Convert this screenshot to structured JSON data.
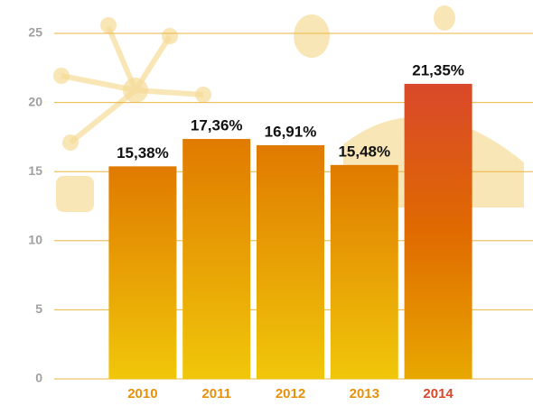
{
  "chart_data": {
    "type": "bar",
    "categories": [
      "2010",
      "2011",
      "2012",
      "2013",
      "2014"
    ],
    "values": [
      15.38,
      17.36,
      16.91,
      15.48,
      21.35
    ],
    "value_labels": [
      "15,38%",
      "17,36%",
      "16,91%",
      "15,48%",
      "21,35%"
    ],
    "colors": [
      "#e07a00",
      "#e07a00",
      "#e07a00",
      "#e07a00",
      "#d9482a"
    ],
    "ylim": [
      0,
      25
    ],
    "yticks": [
      0,
      5,
      10,
      15,
      20,
      25
    ],
    "grid": true
  }
}
